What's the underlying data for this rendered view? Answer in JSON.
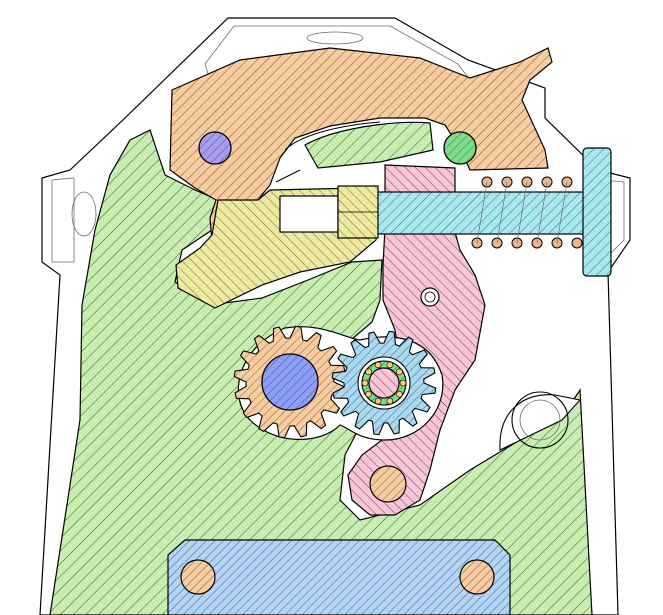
{
  "diagram": {
    "type": "mechanical cross-section",
    "labels": [],
    "colors": {
      "outline": "#000000",
      "housing": "#ffffff",
      "housing_edge": "#6b6b6b",
      "green_part": "#c9ecb2",
      "green_hatch": "#2f6b1f",
      "tan_part": "#f6ccA0",
      "tan_hatch": "#6a4420",
      "yellow_part": "#eee9a2",
      "yellow_hatch": "#5f5a1a",
      "pink_part": "#f6c6d6",
      "pink_hatch": "#6a2a40",
      "cyan_part": "#a9e7ee",
      "cyan_hatch": "#1e6570",
      "blue_part": "#b4d4f4",
      "blue_hatch": "#1f4a80",
      "pin_purple": "#a79cf0",
      "pin_green": "#7fdc8a",
      "pin_orange": "#f2b978",
      "gear_hub_blue": "#8f9ef5",
      "spring": "#f0b486"
    },
    "components": {
      "housing": "housing-outline",
      "main_frame": "green-frame",
      "latch_lever": "tan-lever",
      "cam_link": "yellow-link",
      "pawl_arm": "pink-arm",
      "plunger": "cyan-plunger",
      "base_plate": "blue-base-plate",
      "gear_left": "left-gear",
      "gear_right": "right-gear",
      "spring": "compression-spring"
    }
  }
}
